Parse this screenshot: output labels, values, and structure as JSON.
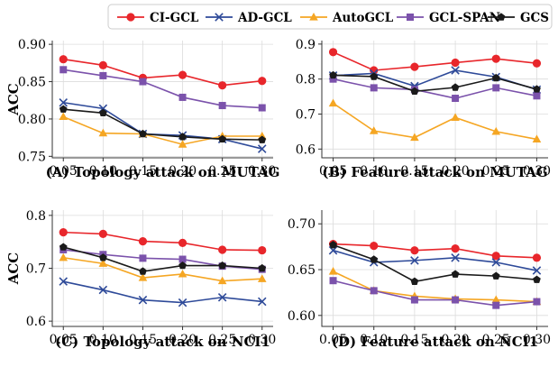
{
  "colors": {
    "CI-GCL": "#e8262b",
    "AD-GCL": "#2e4a99",
    "AutoGCL": "#f5a623",
    "GCL-SPAN": "#7b52ab",
    "GCS": "#1a1a1a"
  },
  "legend": [
    {
      "name": "CI-GCL",
      "marker": "circle"
    },
    {
      "name": "AD-GCL",
      "marker": "x"
    },
    {
      "name": "AutoGCL",
      "marker": "triangle"
    },
    {
      "name": "GCL-SPAN",
      "marker": "square"
    },
    {
      "name": "GCS",
      "marker": "pentagon"
    }
  ],
  "chart_data": [
    {
      "type": "line",
      "title": "(A) Topology attack on MUTAG",
      "ylabel": "ACC",
      "x": [
        0.05,
        0.1,
        0.15,
        0.2,
        0.25,
        0.3
      ],
      "xticks": [
        "0.05",
        "0.10",
        "0.15",
        "0.20",
        "0.25",
        "0.30"
      ],
      "ylim": [
        0.748,
        0.905
      ],
      "yticks": [
        0.75,
        0.8,
        0.85,
        0.9
      ],
      "ytick_labels": [
        "0.75",
        "0.80",
        "0.85",
        "0.90"
      ],
      "grid": true,
      "series": [
        {
          "name": "CI-GCL",
          "values": [
            0.88,
            0.872,
            0.855,
            0.859,
            0.845,
            0.851
          ]
        },
        {
          "name": "AD-GCL",
          "values": [
            0.822,
            0.814,
            0.78,
            0.778,
            0.773,
            0.76
          ]
        },
        {
          "name": "AutoGCL",
          "values": [
            0.803,
            0.781,
            0.78,
            0.766,
            0.777,
            0.777
          ]
        },
        {
          "name": "GCL-SPAN",
          "values": [
            0.866,
            0.858,
            0.85,
            0.829,
            0.818,
            0.815
          ]
        },
        {
          "name": "GCS",
          "values": [
            0.813,
            0.808,
            0.78,
            0.776,
            0.773,
            0.772
          ]
        }
      ]
    },
    {
      "type": "line",
      "title": "(B) Feature attack on MUTAG",
      "ylabel": "",
      "x": [
        0.05,
        0.1,
        0.15,
        0.2,
        0.25,
        0.3
      ],
      "xticks": [
        "0.05",
        "0.10",
        "0.15",
        "0.20",
        "0.25",
        "0.30"
      ],
      "ylim": [
        0.575,
        0.91
      ],
      "yticks": [
        0.6,
        0.7,
        0.8,
        0.9
      ],
      "ytick_labels": [
        "0.6",
        "0.7",
        "0.8",
        "0.9"
      ],
      "grid": true,
      "series": [
        {
          "name": "CI-GCL",
          "values": [
            0.877,
            0.825,
            0.835,
            0.847,
            0.858,
            0.845
          ]
        },
        {
          "name": "AD-GCL",
          "values": [
            0.81,
            0.816,
            0.78,
            0.825,
            0.806,
            0.77
          ]
        },
        {
          "name": "AutoGCL",
          "values": [
            0.731,
            0.652,
            0.633,
            0.69,
            0.65,
            0.628
          ]
        },
        {
          "name": "GCL-SPAN",
          "values": [
            0.8,
            0.775,
            0.77,
            0.745,
            0.775,
            0.752
          ]
        },
        {
          "name": "GCS",
          "values": [
            0.811,
            0.807,
            0.765,
            0.776,
            0.803,
            0.771
          ]
        }
      ]
    },
    {
      "type": "line",
      "title": "(C) Topology attack on NCI1",
      "ylabel": "ACC",
      "x": [
        0.05,
        0.1,
        0.15,
        0.2,
        0.25,
        0.3
      ],
      "xticks": [
        "0.05",
        "0.10",
        "0.15",
        "0.20",
        "0.25",
        "0.30"
      ],
      "ylim": [
        0.59,
        0.81
      ],
      "yticks": [
        0.6,
        0.7,
        0.8
      ],
      "ytick_labels": [
        "0.6",
        "0.7",
        "0.8"
      ],
      "grid": true,
      "series": [
        {
          "name": "CI-GCL",
          "values": [
            0.768,
            0.765,
            0.751,
            0.748,
            0.735,
            0.734
          ]
        },
        {
          "name": "AD-GCL",
          "values": [
            0.675,
            0.659,
            0.64,
            0.635,
            0.645,
            0.637
          ]
        },
        {
          "name": "AutoGCL",
          "values": [
            0.72,
            0.709,
            0.682,
            0.689,
            0.676,
            0.68
          ]
        },
        {
          "name": "GCL-SPAN",
          "values": [
            0.735,
            0.726,
            0.719,
            0.717,
            0.704,
            0.698
          ]
        },
        {
          "name": "GCS",
          "values": [
            0.74,
            0.72,
            0.694,
            0.705,
            0.705,
            0.7
          ]
        }
      ]
    },
    {
      "type": "line",
      "title": "(D) Feature attack on NCI1",
      "ylabel": "",
      "x": [
        0.05,
        0.1,
        0.15,
        0.2,
        0.25,
        0.3
      ],
      "xticks": [
        "0.05",
        "0.10",
        "0.15",
        "0.20",
        "0.25",
        "0.30"
      ],
      "ylim": [
        0.588,
        0.715
      ],
      "yticks": [
        0.6,
        0.65,
        0.7
      ],
      "ytick_labels": [
        "0.60",
        "0.65",
        "0.70"
      ],
      "grid": true,
      "series": [
        {
          "name": "CI-GCL",
          "values": [
            0.678,
            0.676,
            0.671,
            0.673,
            0.665,
            0.663
          ]
        },
        {
          "name": "AD-GCL",
          "values": [
            0.671,
            0.658,
            0.66,
            0.663,
            0.658,
            0.649
          ]
        },
        {
          "name": "AutoGCL",
          "values": [
            0.648,
            0.627,
            0.621,
            0.618,
            0.617,
            0.615
          ]
        },
        {
          "name": "GCL-SPAN",
          "values": [
            0.638,
            0.627,
            0.617,
            0.617,
            0.611,
            0.615
          ]
        },
        {
          "name": "GCS",
          "values": [
            0.677,
            0.661,
            0.637,
            0.645,
            0.643,
            0.639
          ]
        }
      ]
    }
  ]
}
